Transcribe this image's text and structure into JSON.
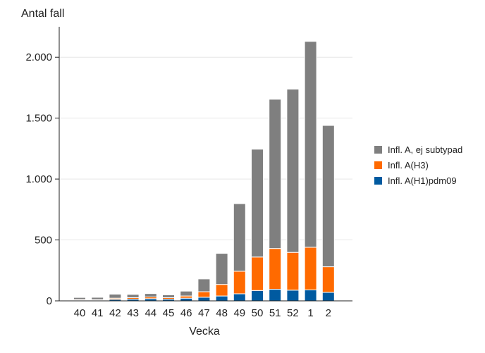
{
  "chart_data": {
    "type": "bar",
    "stacked": true,
    "title": "",
    "ylabel": "Antal fall",
    "xlabel": "Vecka",
    "ylim": [
      0,
      2250
    ],
    "yticks": [
      0,
      500,
      1000,
      1500,
      2000
    ],
    "ytick_labels": [
      "0",
      "500",
      "1.000",
      "1.500",
      "2.000"
    ],
    "categories": [
      "40",
      "41",
      "42",
      "43",
      "44",
      "45",
      "46",
      "47",
      "48",
      "49",
      "50",
      "51",
      "52",
      "1",
      "2"
    ],
    "series": [
      {
        "name": "Infl. A(H1)pdm09",
        "color": "#005aa0",
        "values": [
          5,
          4,
          12,
          14,
          18,
          14,
          22,
          30,
          40,
          58,
          85,
          95,
          88,
          90,
          70
        ]
      },
      {
        "name": "Infl. A(H3)",
        "color": "#ff6a00",
        "values": [
          6,
          6,
          10,
          12,
          14,
          12,
          18,
          45,
          95,
          185,
          275,
          335,
          310,
          350,
          210
        ]
      },
      {
        "name": "Infl. A, ej subtypad",
        "color": "#7f7f7f",
        "values": [
          17,
          19,
          33,
          27,
          28,
          23,
          40,
          105,
          255,
          555,
          885,
          1225,
          1340,
          1690,
          1160
        ]
      }
    ],
    "legend": {
      "position": "right",
      "order": [
        "Infl. A, ej subtypad",
        "Infl. A(H3)",
        "Infl. A(H1)pdm09"
      ]
    },
    "grid": true
  }
}
